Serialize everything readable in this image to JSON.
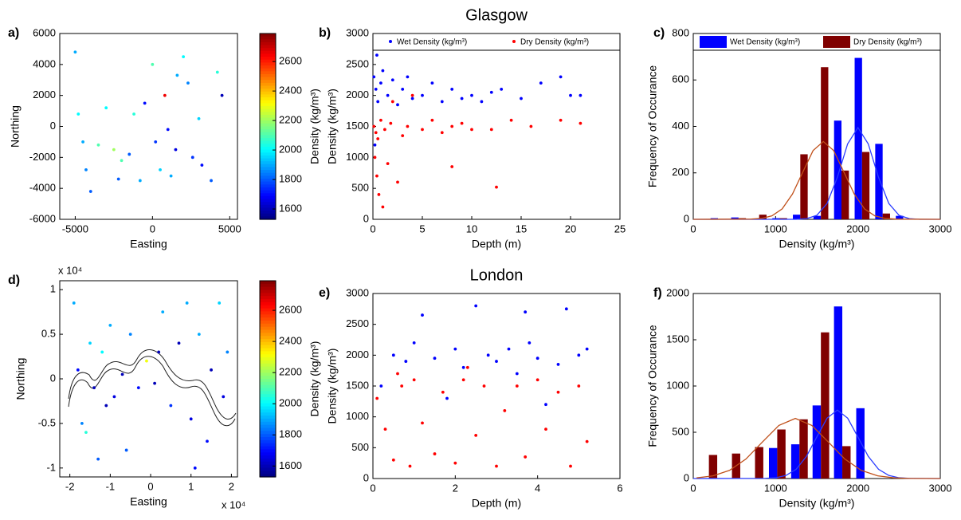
{
  "chart_data": [
    {
      "type": "scatter",
      "label": "a)",
      "xlabel": "Easting",
      "ylabel": "Northing",
      "xlim": [
        -6000,
        5500
      ],
      "xticks": [
        -5000,
        0,
        5000
      ],
      "ylim": [
        -6000,
        6000
      ],
      "yticks": [
        -6000,
        -4000,
        -2000,
        0,
        2000,
        4000,
        6000
      ],
      "colormap": "jet",
      "clim": [
        1530,
        2790
      ],
      "colorbar_ticks": [
        1600,
        1800,
        2000,
        2200,
        2400,
        2600
      ],
      "colorbar_label": "Density (kg/m³)",
      "series": [
        {
          "x": [
            -5000,
            -4800,
            -4500,
            -4300,
            -4000,
            -3500,
            -3000,
            -2500,
            -2000,
            -1500,
            -1200,
            -800,
            -500,
            0,
            200,
            500,
            800,
            1000,
            1200,
            1500,
            2000,
            2300,
            2600,
            3000,
            3200,
            3800,
            4200,
            4500,
            1600,
            -2200
          ],
          "values": [
            4800,
            800,
            -1000,
            -2800,
            -4200,
            -1200,
            1200,
            -1500,
            -2200,
            -1800,
            800,
            -3500,
            1500,
            4000,
            -1000,
            -2800,
            2000,
            -200,
            -3200,
            -1500,
            4500,
            2800,
            -2000,
            500,
            -2500,
            -3500,
            3500,
            2000,
            3300,
            -3400
          ],
          "color_values": [
            1900,
            2000,
            1900,
            1850,
            1800,
            2100,
            2000,
            2200,
            2100,
            1800,
            2050,
            1900,
            1700,
            2100,
            1750,
            1950,
            2650,
            1700,
            1900,
            1650,
            2000,
            1850,
            1750,
            1950,
            1700,
            1800,
            2050,
            1600,
            1900,
            1800
          ]
        }
      ]
    },
    {
      "type": "scatter",
      "label": "b)",
      "title": "Glasgow",
      "xlabel": "Depth (m)",
      "ylabel": "Density (kg/m³)",
      "xlim": [
        0,
        25
      ],
      "xticks": [
        0,
        5,
        10,
        15,
        20,
        25
      ],
      "ylim": [
        0,
        3000
      ],
      "yticks": [
        0,
        500,
        1000,
        1500,
        2000,
        2500,
        3000
      ],
      "legend": "top",
      "series": [
        {
          "name": "Wet Density (kg/m³)",
          "color": "#0000ff",
          "x": [
            0.1,
            0.3,
            0.5,
            0.8,
            1,
            1.5,
            2,
            2.5,
            3,
            3.5,
            4,
            5,
            6,
            7,
            8,
            9,
            10,
            11,
            12,
            13,
            15,
            17,
            19,
            20,
            21,
            0.2,
            0.4
          ],
          "values": [
            2300,
            2100,
            1900,
            2200,
            2400,
            2000,
            2250,
            1850,
            2100,
            2300,
            1950,
            2000,
            2200,
            1900,
            2100,
            1950,
            2000,
            1900,
            2050,
            2100,
            1950,
            2200,
            2300,
            2000,
            2000,
            1200,
            2650
          ]
        },
        {
          "name": "Dry Density (kg/m³)",
          "color": "#ff0000",
          "x": [
            0.1,
            0.3,
            0.5,
            0.2,
            0.4,
            0.6,
            0.8,
            1,
            1.2,
            1.5,
            1.8,
            2,
            2.5,
            3,
            3.5,
            4,
            5,
            6,
            7,
            8,
            9,
            10,
            12,
            12.5,
            14,
            16,
            19,
            21,
            8
          ],
          "values": [
            1500,
            1400,
            1300,
            1000,
            700,
            400,
            1600,
            200,
            1450,
            900,
            1550,
            1900,
            600,
            1350,
            1500,
            2000,
            1450,
            1600,
            1400,
            1500,
            1550,
            1450,
            1450,
            520,
            1600,
            1500,
            1600,
            1550,
            850
          ]
        }
      ]
    },
    {
      "type": "bar",
      "label": "c)",
      "xlabel": "Density (kg/m³)",
      "ylabel": "Frequency of Occurance",
      "xlim": [
        0,
        3000
      ],
      "xticks": [
        0,
        1000,
        2000,
        3000
      ],
      "ylim": [
        0,
        800
      ],
      "yticks": [
        0,
        200,
        400,
        600,
        800
      ],
      "legend": "top",
      "x": [
        300,
        550,
        800,
        1050,
        1300,
        1550,
        1800,
        2050,
        2300,
        2550
      ],
      "series": [
        {
          "name": "Wet Density (kg/m³)",
          "color": "#0000ff",
          "values": [
            5,
            8,
            0,
            5,
            20,
            15,
            425,
            695,
            325,
            15
          ]
        },
        {
          "name": "Dry Density (kg/m³)",
          "color": "#800000",
          "values": [
            0,
            5,
            20,
            5,
            280,
            655,
            210,
            290,
            25,
            0
          ]
        }
      ],
      "curves": [
        {
          "color": "#2a3cff",
          "x": [
            0,
            1250,
            1375,
            1500,
            1625,
            1750,
            1875,
            2000,
            2125,
            2250,
            2375,
            2500,
            2625,
            2750,
            3000
          ],
          "values": [
            0,
            0,
            3,
            17,
            68,
            181,
            325,
            395,
            325,
            181,
            68,
            17,
            3,
            0,
            0
          ]
        },
        {
          "color": "#c0501a",
          "x": [
            0,
            705,
            830,
            955,
            1080,
            1205,
            1330,
            1455,
            1580,
            1705,
            1830,
            1955,
            2080,
            2205,
            2330,
            2455,
            3000
          ],
          "values": [
            0,
            1,
            4,
            15,
            45,
            109,
            203,
            296,
            335,
            296,
            203,
            109,
            45,
            15,
            4,
            1,
            0
          ]
        }
      ]
    },
    {
      "type": "scatter",
      "label": "d)",
      "xlabel": "Easting",
      "ylabel": "Northing",
      "x_multiplier": "x 10⁴",
      "y_multiplier": "x 10⁴",
      "xlim": [
        -2.25,
        2.15
      ],
      "xticks": [
        -2,
        -1,
        0,
        1,
        2
      ],
      "ylim": [
        -1.1,
        1.1
      ],
      "yticks": [
        -1,
        -0.5,
        0,
        0.5,
        1
      ],
      "colormap": "jet",
      "clim": [
        1530,
        2790
      ],
      "colorbar_ticks": [
        1600,
        1800,
        2000,
        2200,
        2400,
        2600
      ],
      "colorbar_label": "Density (kg/m³)",
      "series": [
        {
          "x": [
            -1.9,
            -1.8,
            -1.7,
            -1.5,
            -1.4,
            -1.3,
            -1.2,
            -1.0,
            -0.9,
            -0.7,
            -0.5,
            -0.3,
            -0.1,
            0.1,
            0.3,
            0.5,
            0.7,
            0.9,
            1.0,
            1.2,
            1.4,
            1.5,
            1.7,
            1.8,
            1.9,
            -1.6,
            -0.6,
            0.2,
            1.1,
            -1.1
          ],
          "values": [
            0.85,
            0.1,
            -0.5,
            0.4,
            -0.1,
            -0.9,
            0.3,
            0.6,
            -0.2,
            0.05,
            0.5,
            -0.1,
            0.2,
            -0.05,
            0.75,
            -0.3,
            0.4,
            0.85,
            -0.45,
            0.5,
            -0.7,
            0.1,
            0.85,
            -0.2,
            0.3,
            -0.6,
            -0.8,
            0.3,
            -1.0,
            -0.3
          ],
          "color_values": [
            1900,
            1700,
            1850,
            1950,
            1600,
            1800,
            2000,
            1900,
            1650,
            1600,
            1850,
            1700,
            2300,
            1600,
            1900,
            1750,
            1600,
            1900,
            1650,
            1900,
            1700,
            1600,
            1950,
            1650,
            1850,
            2050,
            1800,
            1600,
            1700,
            1600
          ]
        }
      ]
    },
    {
      "type": "scatter",
      "label": "e)",
      "title": "London",
      "xlabel": "Depth (m)",
      "ylabel": "Density (kg/m³)",
      "xlim": [
        0,
        6
      ],
      "xticks": [
        0,
        2,
        4,
        6
      ],
      "ylim": [
        0,
        3000
      ],
      "yticks": [
        0,
        500,
        1000,
        1500,
        2000,
        2500,
        3000
      ],
      "series": [
        {
          "color": "#0000ff",
          "x": [
            0.2,
            0.5,
            0.8,
            1,
            1.2,
            1.5,
            2,
            2.2,
            2.5,
            2.8,
            3,
            3.3,
            3.5,
            3.8,
            4,
            4.2,
            4.5,
            4.7,
            5,
            5.2,
            3.7,
            1.8
          ],
          "values": [
            1500,
            2000,
            1900,
            2200,
            2650,
            1950,
            2100,
            1800,
            2800,
            2000,
            1900,
            2100,
            1700,
            2200,
            1950,
            1200,
            1850,
            2750,
            2000,
            2100,
            2700,
            1300
          ]
        },
        {
          "color": "#ff0000",
          "x": [
            0.1,
            0.3,
            0.5,
            0.7,
            0.9,
            1,
            1.2,
            1.5,
            1.7,
            2,
            2.2,
            2.5,
            2.7,
            3,
            3.2,
            3.5,
            3.7,
            4,
            4.2,
            4.5,
            4.8,
            5,
            5.2,
            2.3,
            0.6
          ],
          "values": [
            1300,
            800,
            300,
            1500,
            200,
            1600,
            900,
            400,
            1400,
            250,
            1600,
            700,
            1500,
            200,
            1100,
            1500,
            350,
            1600,
            800,
            1400,
            200,
            1500,
            600,
            1800,
            1700
          ]
        }
      ]
    },
    {
      "type": "bar",
      "label": "f)",
      "xlabel": "Density (kg/m³)",
      "ylabel": "Frequency of Occurance",
      "xlim": [
        0,
        3000
      ],
      "xticks": [
        0,
        1000,
        2000,
        3000
      ],
      "ylim": [
        0,
        2000
      ],
      "yticks": [
        0,
        500,
        1000,
        1500,
        2000
      ],
      "x": [
        190,
        470,
        750,
        1020,
        1290,
        1550,
        1810,
        2080
      ],
      "series": [
        {
          "color": "#0000ff",
          "values": [
            0,
            0,
            0,
            330,
            370,
            790,
            1860,
            760
          ]
        },
        {
          "color": "#800000",
          "values": [
            255,
            270,
            340,
            530,
            640,
            1580,
            350,
            0
          ]
        }
      ],
      "curves": [
        {
          "color": "#2a3cff",
          "x": [
            0,
            875,
            1000,
            1125,
            1250,
            1375,
            1500,
            1625,
            1750,
            1875,
            2000,
            2125,
            2250,
            2375,
            2500,
            2625,
            3000
          ],
          "values": [
            0,
            2,
            8,
            33,
            100,
            240,
            449,
            653,
            740,
            653,
            449,
            240,
            100,
            33,
            8,
            2,
            0
          ]
        },
        {
          "color": "#c0501a",
          "x": [
            40,
            240,
            440,
            640,
            840,
            1040,
            1240,
            1440,
            1640,
            1840,
            2040,
            2240,
            2440,
            2640,
            3000
          ],
          "values": [
            7,
            29,
            88,
            211,
            395,
            574,
            650,
            574,
            395,
            211,
            88,
            29,
            7,
            1,
            0
          ]
        }
      ]
    }
  ]
}
